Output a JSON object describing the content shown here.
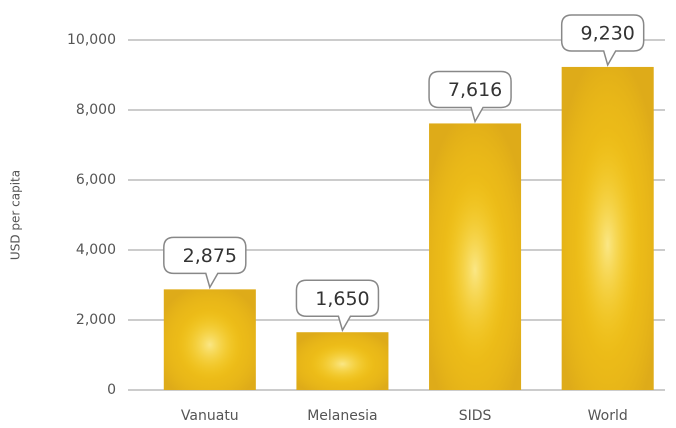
{
  "chart_data": {
    "type": "bar",
    "y_label": "USD per capita",
    "categories": [
      "Vanuatu",
      "Melanesia",
      "SIDS",
      "World"
    ],
    "values": [
      2875,
      1650,
      7616,
      9230
    ],
    "value_labels": [
      "2,875",
      "1,650",
      "7,616",
      "9,230"
    ],
    "color": "#e8b61c",
    "ylim": [
      0,
      10000
    ],
    "yticks": [
      0,
      {
        "value": 2000,
        "label": "2,000"
      },
      {
        "value": 4000,
        "label": "4,000"
      },
      {
        "value": 6000,
        "label": "6,000"
      },
      {
        "value": 8000,
        "label": "8,000"
      },
      {
        "value": 10000,
        "label": "10,000"
      }
    ],
    "grid": true
  }
}
